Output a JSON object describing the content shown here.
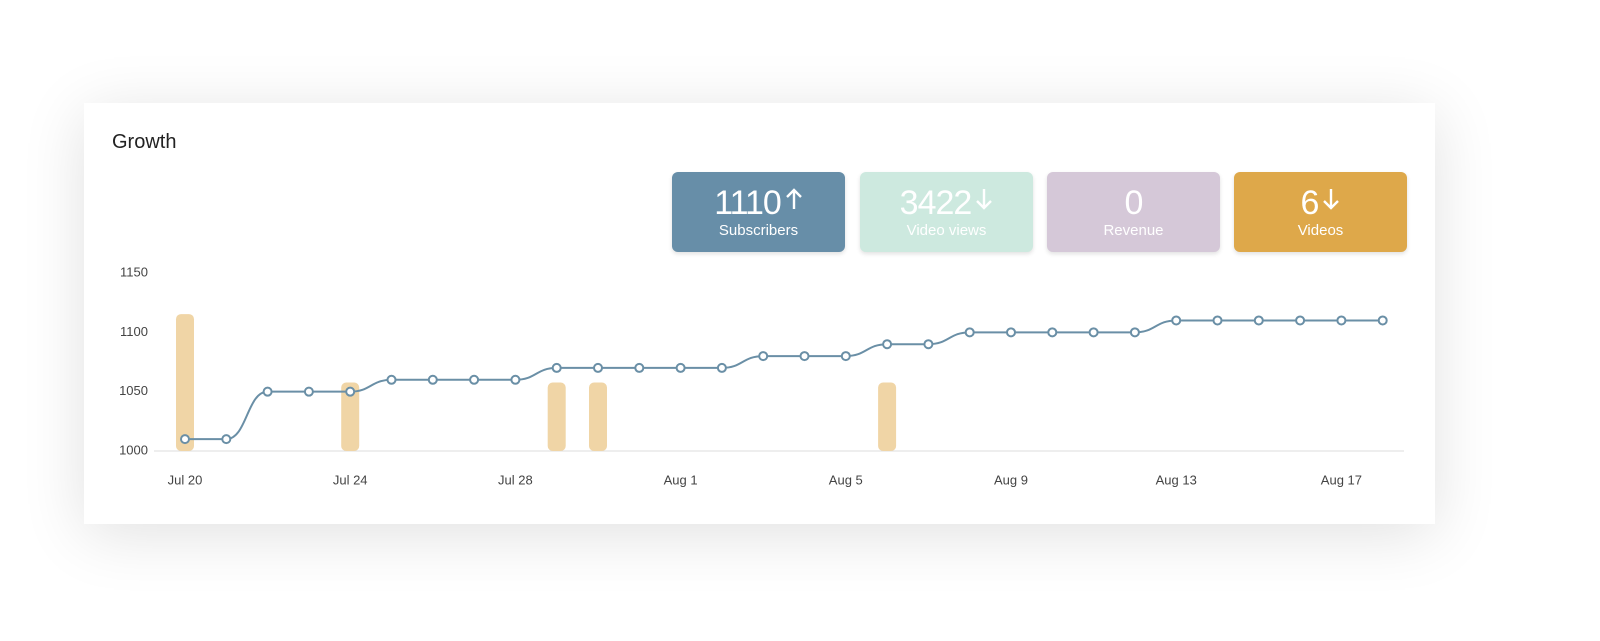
{
  "header": {
    "title": "Growth"
  },
  "stats": [
    {
      "value": 1110,
      "label": "Subscribers",
      "trend": "up",
      "color": "#678ea8"
    },
    {
      "value": 3422,
      "label": "Video views",
      "trend": "down",
      "color": "#cde9df"
    },
    {
      "value": 0,
      "label": "Revenue",
      "color": "#d5c8d8"
    },
    {
      "value": 6,
      "label": "Videos",
      "trend": "down",
      "color": "#dea84a"
    }
  ],
  "chart_data": {
    "type": "line",
    "categories": [
      "Jul 20",
      null,
      null,
      null,
      "Jul 24",
      null,
      null,
      null,
      "Jul 28",
      null,
      null,
      null,
      "Aug 1",
      null,
      null,
      null,
      "Aug 5",
      null,
      null,
      null,
      "Aug 9",
      null,
      null,
      null,
      "Aug 13",
      null,
      null,
      null,
      "Aug 17",
      null
    ],
    "series": [
      {
        "color": "#6a8fa6",
        "values": [
          1010,
          1010,
          1050,
          1050,
          1050,
          1060,
          1060,
          1060,
          1060,
          1070,
          1070,
          1070,
          1070,
          1070,
          1080,
          1080,
          1080,
          1090,
          1090,
          1100,
          1100,
          1100,
          1100,
          1100,
          1110,
          1110,
          1110,
          1110,
          1110,
          1110
        ]
      },
      {
        "type": "bar",
        "axis": "y2",
        "color": "#f0d5a6",
        "values": [
          2,
          0,
          0,
          0,
          1,
          0,
          0,
          0,
          0,
          1,
          1,
          0,
          0,
          0,
          0,
          0,
          0,
          1,
          0,
          0,
          0,
          0,
          0,
          0,
          0,
          0,
          0,
          0,
          0,
          0
        ]
      }
    ],
    "ylim": [
      1000,
      1150
    ],
    "yticks": [
      1000,
      1050,
      1100,
      1150
    ],
    "y2lim": [
      0,
      2.6
    ],
    "grid": false
  }
}
